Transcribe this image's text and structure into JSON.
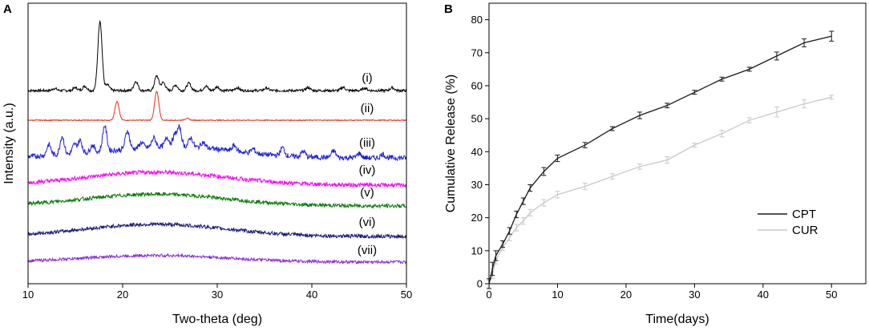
{
  "chart_data": [
    {
      "panel": "A",
      "type": "line",
      "title": "",
      "xlabel": "Two-theta (deg)",
      "ylabel": "Intensity (a.u.)",
      "xlim": [
        10,
        50
      ],
      "xticks": [
        10,
        20,
        30,
        40,
        50
      ],
      "grid": false,
      "series": [
        {
          "name": "(i)",
          "color": "#000000",
          "peaks": [
            [
              12.8,
              0.6
            ],
            [
              15.0,
              0.8
            ],
            [
              16.0,
              1.2
            ],
            [
              17.6,
              19
            ],
            [
              18.4,
              1.5
            ],
            [
              21.4,
              2.5
            ],
            [
              23.6,
              4.0
            ],
            [
              24.3,
              2.2
            ],
            [
              25.6,
              1.5
            ],
            [
              27.0,
              2.0
            ],
            [
              28.8,
              1.2
            ],
            [
              30.0,
              1.0
            ],
            [
              32.1,
              0.8
            ],
            [
              35.2,
              0.7
            ],
            [
              39.6,
              0.8
            ],
            [
              43.3,
              0.9
            ],
            [
              45.6,
              0.7
            ],
            [
              48.5,
              0.8
            ]
          ],
          "baseline": 0.0
        },
        {
          "name": "(ii)",
          "color": "#e8301c",
          "peaks": [
            [
              19.4,
              5.0
            ],
            [
              23.6,
              7.8
            ],
            [
              26.8,
              0.5
            ]
          ],
          "baseline": 0.0
        },
        {
          "name": "(iii)",
          "color": "#1f1fe0",
          "peaks": [
            [
              12.2,
              3
            ],
            [
              13.6,
              5
            ],
            [
              14.9,
              2.5
            ],
            [
              15.5,
              3.5
            ],
            [
              16.8,
              2
            ],
            [
              18.1,
              7
            ],
            [
              20.5,
              5
            ],
            [
              22.0,
              1.5
            ],
            [
              23.3,
              2.5
            ],
            [
              24.7,
              2.5
            ],
            [
              25.5,
              3
            ],
            [
              26.0,
              5
            ],
            [
              27.2,
              2.5
            ],
            [
              28.5,
              1.5
            ],
            [
              31.8,
              1.5
            ],
            [
              33.8,
              1.2
            ],
            [
              36.9,
              2.2
            ],
            [
              39.1,
              1.5
            ],
            [
              42.3,
              1.8
            ],
            [
              45.0,
              1.2
            ],
            [
              47.5,
              1.0
            ]
          ],
          "hump": 2.0
        },
        {
          "name": "(iv)",
          "color": "#ff00ff",
          "hump": 3.5
        },
        {
          "name": "(v)",
          "color": "#0a7a0a",
          "hump": 3.2
        },
        {
          "name": "(vi)",
          "color": "#1a1a7a",
          "hump": 3.3
        },
        {
          "name": "(vii)",
          "color": "#8a2be2",
          "hump": 1.8
        }
      ],
      "trace_labels": [
        "(i)",
        "(ii)",
        "(iii)",
        "(iv)",
        "(v)",
        "(vi)",
        "(vii)"
      ]
    },
    {
      "panel": "B",
      "type": "line",
      "title": "",
      "xlabel": "Time(days)",
      "ylabel": "Cumulative  Release (%)",
      "xlim": [
        0,
        55
      ],
      "ylim": [
        0,
        85
      ],
      "xticks": [
        0,
        10,
        20,
        30,
        40,
        50
      ],
      "yticks": [
        0,
        10,
        20,
        30,
        40,
        50,
        60,
        70,
        80
      ],
      "grid": false,
      "legend_position": "right",
      "series": [
        {
          "name": "CPT",
          "color": "#1a1a1a",
          "x": [
            0,
            0.5,
            1,
            2,
            3,
            4,
            5,
            6,
            8,
            10,
            14,
            18,
            22,
            26,
            30,
            34,
            38,
            42,
            46,
            50
          ],
          "y": [
            0,
            4.5,
            8.5,
            12,
            16,
            21,
            25,
            29,
            34,
            38,
            42,
            47,
            51,
            54,
            58,
            62,
            65,
            69,
            73,
            75
          ],
          "err": [
            1.5,
            2,
            1.5,
            1,
            1,
            1,
            1,
            1,
            1.2,
            1,
            0.8,
            0.6,
            1,
            0.7,
            0.6,
            0.6,
            0.6,
            1.2,
            1.2,
            1.5
          ]
        },
        {
          "name": "CUR",
          "color": "#c8c8c8",
          "x": [
            0,
            0.5,
            1,
            2,
            3,
            4,
            5,
            6,
            8,
            10,
            14,
            18,
            22,
            26,
            30,
            34,
            38,
            42,
            46,
            50
          ],
          "y": [
            0,
            3,
            7,
            11,
            14,
            17,
            19,
            21.5,
            24.5,
            27,
            29.5,
            32.5,
            35.5,
            37.5,
            42,
            45.5,
            49.5,
            52,
            54.5,
            56.5
          ],
          "err": [
            1,
            1.5,
            1,
            1,
            1,
            1,
            1,
            1,
            1,
            1,
            1,
            0.8,
            0.8,
            1,
            0.6,
            1,
            0.8,
            1.5,
            1.2,
            0.6
          ]
        }
      ]
    }
  ]
}
